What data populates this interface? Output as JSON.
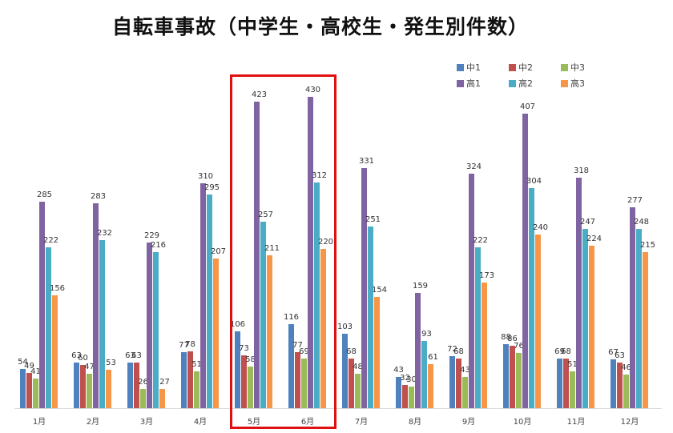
{
  "chart_data": {
    "type": "bar",
    "title": "自転車事故（中学生・高校生・発生別件数）",
    "xlabel": "",
    "ylabel": "",
    "ylim": [
      0,
      450
    ],
    "grid": false,
    "legend_position": "top-right",
    "categories": [
      "1月",
      "2月",
      "3月",
      "4月",
      "5月",
      "6月",
      "7月",
      "8月",
      "9月",
      "10月",
      "11月",
      "12月"
    ],
    "series": [
      {
        "name": "中1",
        "color": "#4f81bd",
        "values": [
          54,
          63,
          63,
          77,
          106,
          116,
          103,
          43,
          72,
          88,
          69,
          67
        ]
      },
      {
        "name": "中2",
        "color": "#c0504d",
        "values": [
          49,
          60,
          63,
          78,
          73,
          77,
          68,
          32,
          68,
          86,
          68,
          63
        ]
      },
      {
        "name": "中3",
        "color": "#9bbb59",
        "values": [
          41,
          47,
          26,
          51,
          58,
          69,
          48,
          30,
          43,
          76,
          51,
          46
        ]
      },
      {
        "name": "高1",
        "color": "#8064a2",
        "values": [
          285,
          283,
          229,
          310,
          423,
          430,
          331,
          159,
          324,
          407,
          318,
          277
        ]
      },
      {
        "name": "高2",
        "color": "#4bacc6",
        "values": [
          222,
          232,
          216,
          295,
          257,
          312,
          251,
          93,
          222,
          304,
          247,
          248
        ]
      },
      {
        "name": "高3",
        "color": "#f79646",
        "values": [
          156,
          53,
          27,
          207,
          211,
          220,
          154,
          61,
          173,
          240,
          224,
          215
        ]
      }
    ],
    "annotations": [
      {
        "type": "highlight-box",
        "categories": [
          "5月",
          "6月"
        ],
        "color": "#e01010"
      }
    ]
  }
}
